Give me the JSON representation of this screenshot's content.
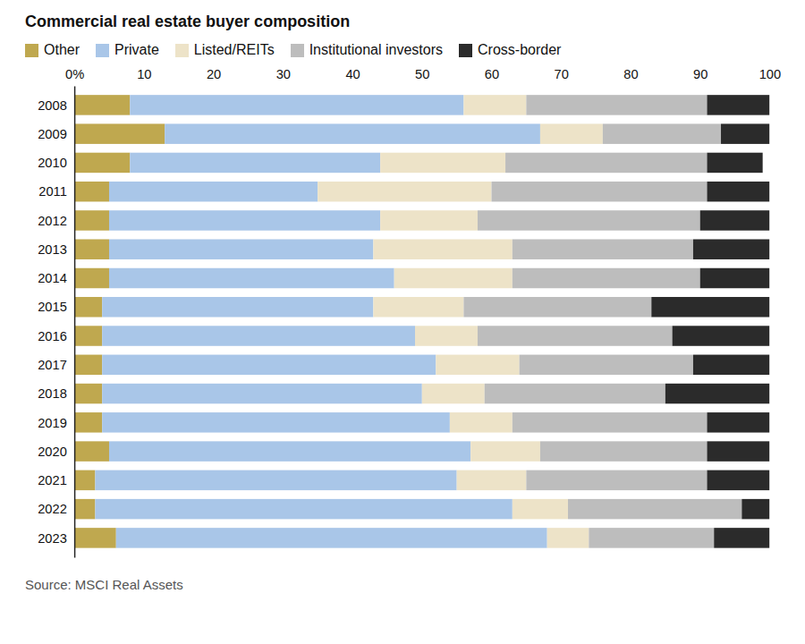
{
  "chart_data": {
    "type": "bar",
    "title": "Commercial real estate buyer composition",
    "caption": "Source: MSCI Real Assets",
    "orientation": "horizontal",
    "stacked": true,
    "grid": false,
    "legend": "top-left",
    "categories": [
      "2008",
      "2009",
      "2010",
      "2011",
      "2012",
      "2013",
      "2014",
      "2015",
      "2016",
      "2017",
      "2018",
      "2019",
      "2020",
      "2021",
      "2022",
      "2023"
    ],
    "xlim": [
      0,
      100
    ],
    "xticks": [
      {
        "value": 0,
        "label": "0%"
      },
      10,
      20,
      30,
      40,
      50,
      60,
      70,
      80,
      90,
      100
    ],
    "series": [
      {
        "name": "Other",
        "color": "#bfa84f",
        "values": [
          8,
          13,
          8,
          5,
          5,
          5,
          5,
          4,
          4,
          4,
          4,
          4,
          5,
          3,
          3,
          6
        ]
      },
      {
        "name": "Private",
        "color": "#a9c6e8",
        "values": [
          48,
          54,
          36,
          30,
          39,
          38,
          41,
          39,
          45,
          48,
          46,
          50,
          52,
          52,
          60,
          62
        ]
      },
      {
        "name": "Listed/REITs",
        "color": "#ede3c8",
        "values": [
          9,
          9,
          18,
          25,
          14,
          20,
          17,
          13,
          9,
          12,
          9,
          9,
          10,
          10,
          8,
          6
        ]
      },
      {
        "name": "Institutional investors",
        "color": "#bdbdbd",
        "values": [
          26,
          17,
          29,
          31,
          32,
          26,
          27,
          27,
          28,
          25,
          26,
          28,
          24,
          26,
          25,
          18
        ]
      },
      {
        "name": "Cross-border",
        "color": "#2b2b2b",
        "values": [
          9,
          7,
          8,
          9,
          10,
          11,
          10,
          17,
          14,
          11,
          15,
          9,
          9,
          9,
          4,
          8
        ]
      }
    ]
  }
}
